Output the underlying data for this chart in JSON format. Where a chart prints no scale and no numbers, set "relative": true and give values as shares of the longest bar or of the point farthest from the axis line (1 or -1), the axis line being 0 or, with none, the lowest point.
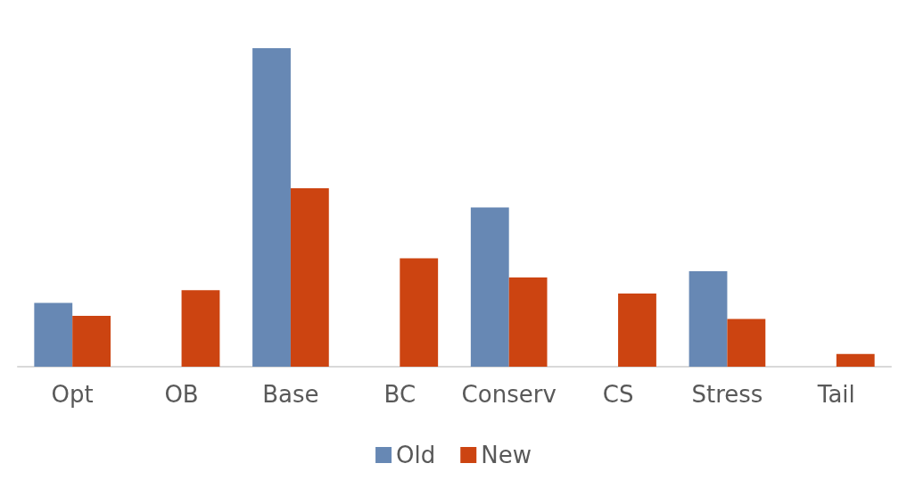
{
  "chart_data": {
    "type": "bar",
    "relative": true,
    "categories": [
      "Opt",
      "OB",
      "Base",
      "BC",
      "Conserv",
      "CS",
      "Stress",
      "Tail"
    ],
    "series": [
      {
        "name": "Old",
        "color": "#6788b4",
        "values": [
          0.2,
          null,
          1,
          null,
          0.5,
          null,
          0.3,
          null
        ]
      },
      {
        "name": "New",
        "color": "#cc4411",
        "values": [
          0.16,
          0.24,
          0.56,
          0.34,
          0.28,
          0.23,
          0.15,
          0.04
        ]
      }
    ],
    "legend": "bottom"
  }
}
